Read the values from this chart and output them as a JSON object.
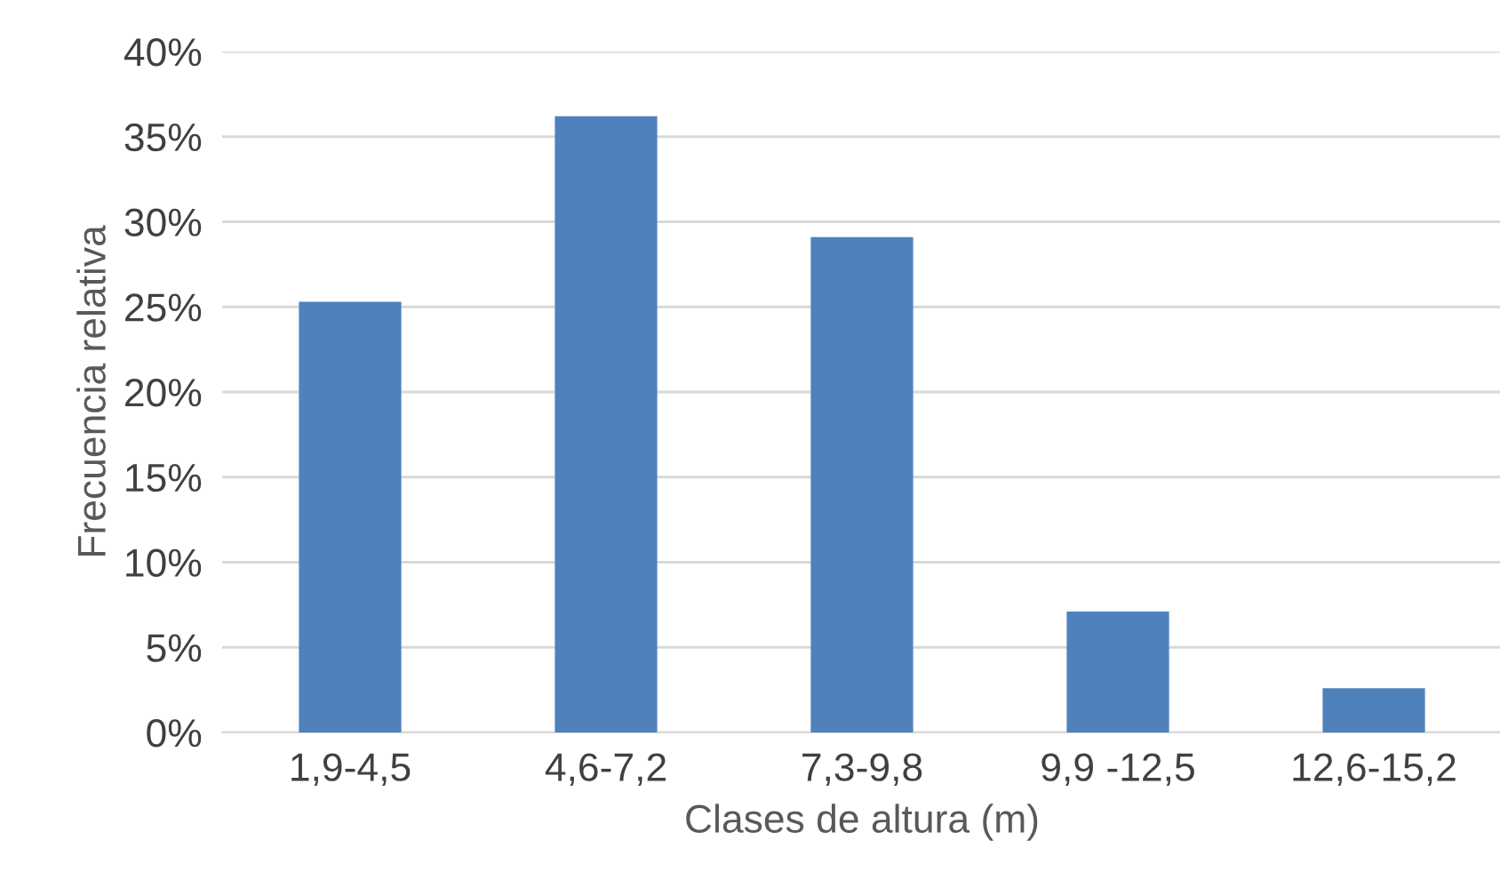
{
  "chart_data": {
    "type": "bar",
    "xlabel": "Clases de altura (m)",
    "ylabel": "Frecuencia relativa",
    "categories": [
      "1,9-4,5",
      "4,6-7,2",
      "7,3-9,8",
      "9,9 -12,5",
      "12,6-15,2"
    ],
    "values": [
      25.3,
      36.2,
      29.1,
      7.1,
      2.6
    ],
    "color": "#4f81bd",
    "ylim": [
      0,
      40
    ],
    "yticks": [
      {
        "value": 0,
        "label": "0%"
      },
      {
        "value": 5,
        "label": "5%"
      },
      {
        "value": 10,
        "label": "10%"
      },
      {
        "value": 15,
        "label": "15%"
      },
      {
        "value": 20,
        "label": "20%"
      },
      {
        "value": 25,
        "label": "25%"
      },
      {
        "value": 30,
        "label": "30%"
      },
      {
        "value": 35,
        "label": "35%"
      },
      {
        "value": 40,
        "label": "40%"
      }
    ],
    "grid": "y",
    "legend": false
  }
}
